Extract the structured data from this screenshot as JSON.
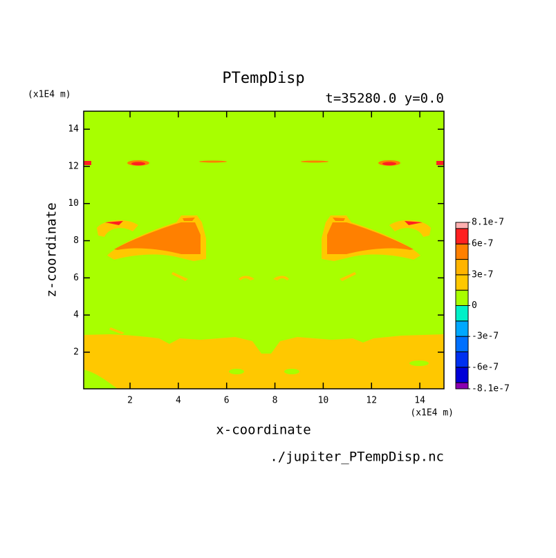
{
  "chart_data": {
    "type": "contour",
    "title": "PTempDisp",
    "subtitle": "t=35280.0 y=0.0",
    "x_unit": "(x1E4 m)",
    "y_unit": "(x1E4 m)",
    "xlabel": "x-coordinate",
    "ylabel": "z-coordinate",
    "source": "./jupiter_PTempDisp.nc",
    "xlim": [
      0.08,
      15.0
    ],
    "ylim": [
      0.03,
      14.97
    ],
    "xticks": [
      2,
      4,
      6,
      8,
      10,
      12,
      14
    ],
    "yticks": [
      2,
      4,
      6,
      8,
      10,
      12,
      14
    ],
    "colorbar": {
      "levels": [
        -8.1e-07,
        -7.5e-07,
        -6e-07,
        -4.5e-07,
        -3e-07,
        -1.5e-07,
        0,
        1.5e-07,
        3e-07,
        4.5e-07,
        6e-07,
        7.5e-07,
        8.1e-07
      ],
      "colors": [
        "#8a00b0",
        "#0000d8",
        "#0030f0",
        "#0070ff",
        "#00a8ff",
        "#00f0c8",
        "#a8ff00",
        "#ffc800",
        "#ffb400",
        "#ff8000",
        "#ff2020",
        "#ffb0b0"
      ],
      "ticks": [
        -8.1e-07,
        -6e-07,
        -3e-07,
        0,
        3e-07,
        6e-07,
        8.1e-07
      ]
    }
  }
}
